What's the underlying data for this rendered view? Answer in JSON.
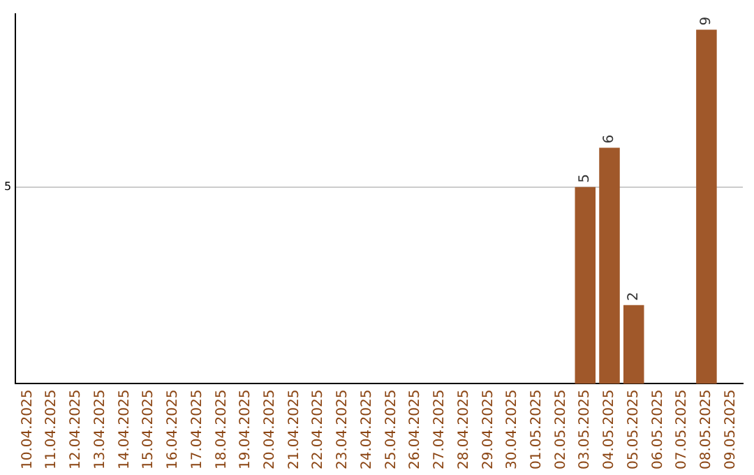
{
  "chart_data": {
    "type": "bar",
    "categories": [
      "10.04.2025",
      "11.04.2025",
      "12.04.2025",
      "13.04.2025",
      "14.04.2025",
      "15.04.2025",
      "16.04.2025",
      "17.04.2025",
      "18.04.2025",
      "19.04.2025",
      "20.04.2025",
      "21.04.2025",
      "22.04.2025",
      "23.04.2025",
      "24.04.2025",
      "25.04.2025",
      "26.04.2025",
      "27.04.2025",
      "28.04.2025",
      "29.04.2025",
      "30.04.2025",
      "01.05.2025",
      "02.05.2025",
      "03.05.2025",
      "04.05.2025",
      "05.05.2025",
      "06.05.2025",
      "07.05.2025",
      "08.05.2025",
      "09.05.2025"
    ],
    "values": [
      null,
      null,
      null,
      null,
      null,
      null,
      null,
      null,
      null,
      null,
      null,
      null,
      null,
      null,
      null,
      null,
      null,
      null,
      null,
      null,
      null,
      null,
      null,
      5,
      6,
      2,
      null,
      null,
      9,
      null
    ],
    "color": "#a0582a",
    "ylim": [
      0,
      9.4
    ],
    "yticks": [
      5
    ],
    "grid": "y",
    "data_labels": true,
    "legend": false
  }
}
